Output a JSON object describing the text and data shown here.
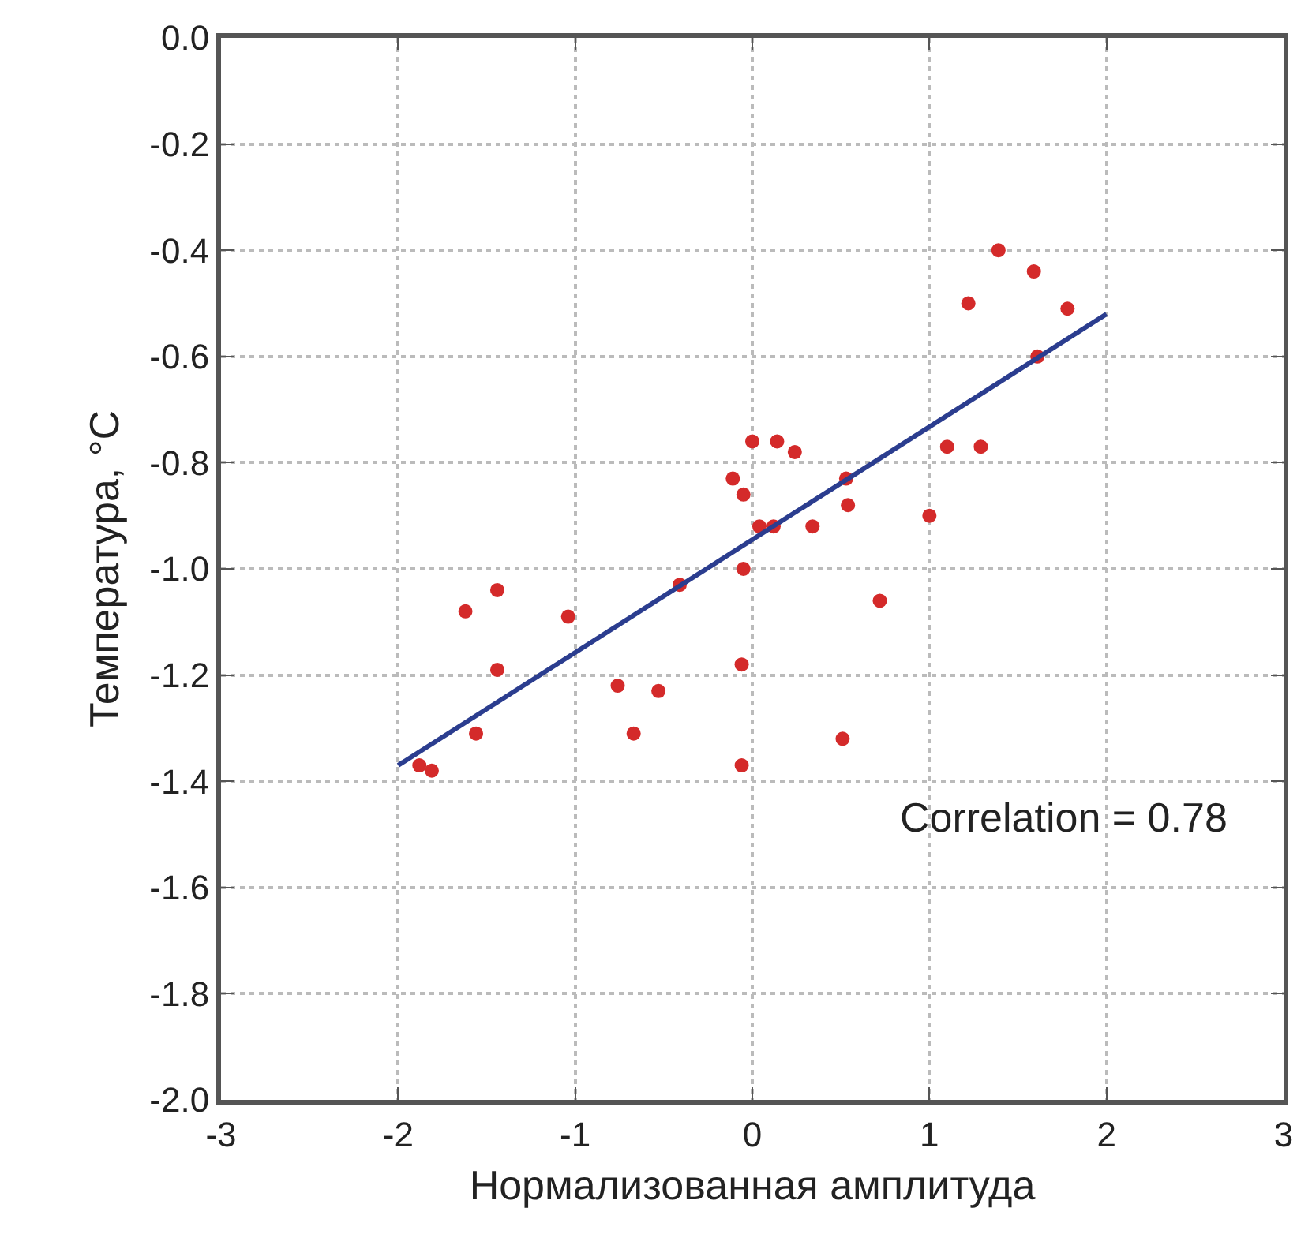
{
  "chart_data": {
    "type": "scatter",
    "xlabel": "Нормализованная амплитуда",
    "ylabel": "Температура, °C",
    "xlim": [
      -3,
      3
    ],
    "xticks": [
      -3,
      -2,
      -1,
      0,
      1,
      2,
      3
    ],
    "ylim": [
      -2,
      0
    ],
    "yticks": [
      {
        "value": 0,
        "label": "0.0"
      },
      -0.2,
      -0.4,
      -0.6,
      -0.8,
      {
        "value": -1,
        "label": "-1.0"
      },
      -1.2,
      -1.4,
      -1.6,
      -1.8,
      {
        "value": -2,
        "label": "-2.0"
      }
    ],
    "grid": true,
    "marker": "circle",
    "annotations": [
      "Correlation = 0.78"
    ],
    "series": [
      {
        "color": "#d42a2a",
        "x": [
          1.39,
          1.59,
          1.22,
          1.78,
          1.61,
          1.1,
          1.29,
          0.53,
          0.54,
          0.34,
          1.0,
          0.72,
          0.0,
          0.14,
          0.24,
          -0.11,
          -0.05,
          0.04,
          0.11,
          0.12,
          -0.05,
          -0.41,
          -1.44,
          -1.62,
          -1.04,
          -1.44,
          -0.06,
          -0.76,
          -0.53,
          -1.56,
          -0.67,
          0.51,
          -1.88,
          -1.81,
          -0.06
        ],
        "values": [
          -0.4,
          -0.44,
          -0.5,
          -0.51,
          -0.6,
          -0.77,
          -0.77,
          -0.83,
          -0.88,
          -0.92,
          -0.9,
          -1.06,
          -0.76,
          -0.76,
          -0.78,
          -0.83,
          -0.86,
          -0.92,
          null,
          -0.92,
          -1.0,
          -1.03,
          -1.04,
          -1.08,
          -1.09,
          -1.19,
          -1.18,
          -1.22,
          -1.23,
          -1.31,
          -1.31,
          -1.32,
          -1.37,
          -1.38,
          -1.37
        ]
      },
      {
        "type": "line",
        "color": "#2b3d8f",
        "marker": "none",
        "x": [
          -2,
          2
        ],
        "values": [
          -1.37,
          -0.52
        ]
      }
    ]
  }
}
